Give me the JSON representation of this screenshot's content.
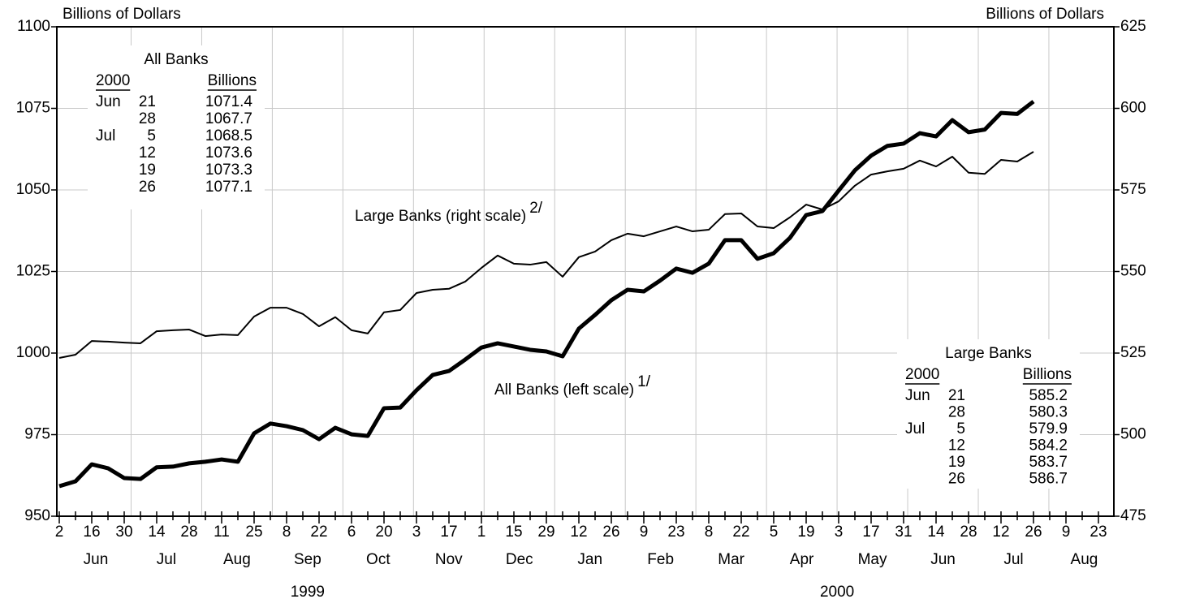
{
  "chart_data": {
    "type": "line",
    "ylabel": "Billions of Dollars",
    "y2label": "Billions of Dollars",
    "ylim": [
      950,
      1100
    ],
    "yticks": [
      950,
      975,
      1000,
      1025,
      1050,
      1075,
      1100
    ],
    "y2lim": [
      475,
      625
    ],
    "y2ticks": [
      475,
      500,
      525,
      550,
      575,
      600,
      625
    ],
    "grid": true,
    "categories": [
      "2",
      null,
      "16",
      null,
      "30",
      null,
      "14",
      null,
      "28",
      null,
      "11",
      null,
      "25",
      null,
      "8",
      null,
      "22",
      null,
      "6",
      null,
      "20",
      null,
      "3",
      null,
      "17",
      null,
      "1",
      null,
      "15",
      null,
      "29",
      null,
      "12",
      null,
      "26",
      null,
      "9",
      null,
      "23",
      null,
      "8",
      null,
      "22",
      null,
      "5",
      null,
      "19",
      null,
      "3",
      null,
      "17",
      null,
      "31",
      null,
      "14",
      null,
      "28",
      null,
      "12",
      null,
      "26",
      null,
      "9",
      null,
      "23"
    ],
    "x_groups": [
      {
        "year": "1999",
        "months": [
          "Jun",
          "Jul",
          "Aug",
          "Sep",
          "Oct",
          "Nov",
          "Dec"
        ]
      },
      {
        "year": "2000",
        "months": [
          "Jan",
          "Feb",
          "Mar",
          "Apr",
          "May",
          "Jun",
          "Jul",
          "Aug"
        ]
      }
    ],
    "series": [
      {
        "name": "All Banks (left scale)",
        "note": "1/",
        "color": "#000000",
        "width": 5,
        "values": [
          959.2,
          960.7,
          965.9,
          964.7,
          961.7,
          961.4,
          965,
          965.2,
          966.2,
          966.7,
          967.4,
          966.7,
          975.4,
          978.4,
          977.6,
          976.4,
          973.6,
          977.1,
          975.1,
          974.6,
          983.1,
          983.3,
          988.6,
          993.3,
          994.5,
          998,
          1001.7,
          1003,
          1002,
          1001,
          1000.5,
          999,
          1007.5,
          1011.7,
          1016.2,
          1019.4,
          1018.9,
          1022.2,
          1025.9,
          1024.6,
          1027.4,
          1034.6,
          1034.6,
          1028.9,
          1030.6,
          1035.3,
          1042.3,
          1043.5,
          1049.8,
          1056,
          1060.5,
          1063.5,
          1064.2,
          1067.4,
          1066.4,
          1071.4,
          1067.7,
          1068.5,
          1073.6,
          1073.3,
          1077.1,
          null,
          null,
          null,
          null
        ]
      },
      {
        "name": "Large Banks (right scale)",
        "note": "2/",
        "color": "#000000",
        "width": 2,
        "axis": "y2",
        "values": [
          523.5,
          524.5,
          528.7,
          528.5,
          528.2,
          528,
          531.7,
          532,
          532.2,
          530.2,
          530.7,
          530.5,
          536.2,
          538.9,
          538.9,
          537,
          533.2,
          536,
          532,
          531,
          537.5,
          538.2,
          543.4,
          544.4,
          544.7,
          546.9,
          551.1,
          554.9,
          552.4,
          552.1,
          552.9,
          548.4,
          554.4,
          556.1,
          559.6,
          561.6,
          560.8,
          562.3,
          563.8,
          562.3,
          562.8,
          567.6,
          567.8,
          563.8,
          563.3,
          566.6,
          570.5,
          569,
          571.5,
          576.3,
          579.7,
          580.7,
          581.5,
          584,
          582.2,
          585.2,
          580.3,
          579.9,
          584.2,
          583.7,
          586.7,
          null,
          null,
          null,
          null
        ]
      }
    ],
    "tables": [
      {
        "title": "All Banks",
        "headers": [
          "2000",
          "Billions"
        ],
        "rows": [
          [
            "Jun",
            "21",
            "1071.4"
          ],
          [
            null,
            "28",
            "1067.7"
          ],
          [
            "Jul",
            "5",
            "1068.5"
          ],
          [
            null,
            "12",
            "1073.6"
          ],
          [
            null,
            "19",
            "1073.3"
          ],
          [
            null,
            "26",
            "1077.1"
          ]
        ]
      },
      {
        "title": "Large Banks",
        "headers": [
          "2000",
          "Billions"
        ],
        "rows": [
          [
            "Jun",
            "21",
            "585.2"
          ],
          [
            null,
            "28",
            "580.3"
          ],
          [
            "Jul",
            "5",
            "579.9"
          ],
          [
            null,
            "12",
            "584.2"
          ],
          [
            null,
            "19",
            "583.7"
          ],
          [
            null,
            "26",
            "586.7"
          ]
        ]
      }
    ]
  }
}
